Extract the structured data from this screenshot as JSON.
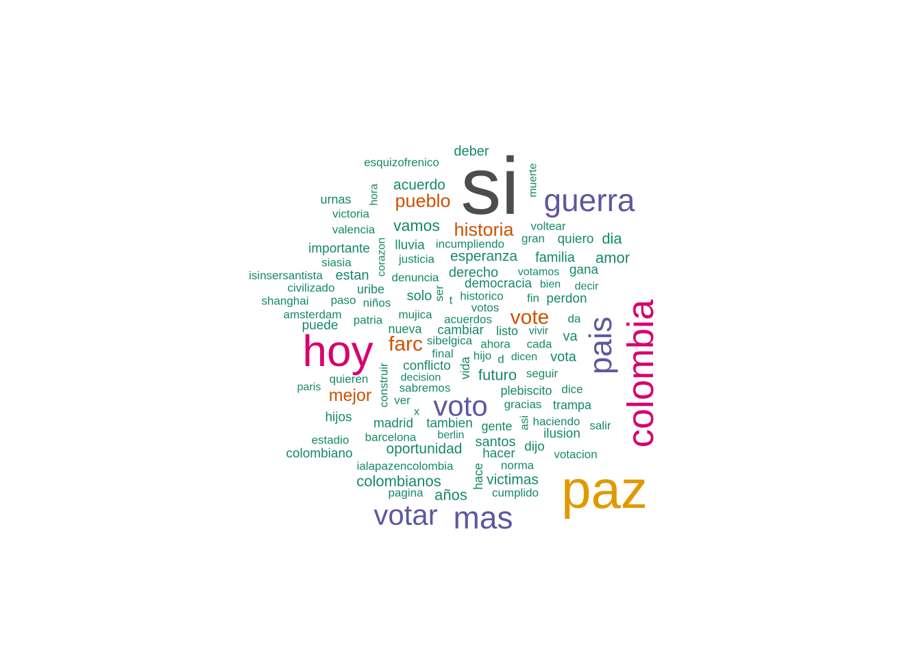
{
  "palette": {
    "dark": "#4d4d4d",
    "purple": "#5e57a0",
    "magenta": "#d6006f",
    "gold": "#e09a00",
    "orange": "#cc5200",
    "green": "#15886a"
  },
  "words": [
    {
      "text": "si",
      "color": "dark"
    },
    {
      "text": "paz",
      "color": "gold"
    },
    {
      "text": "colombia",
      "color": "magenta"
    },
    {
      "text": "hoy",
      "color": "magenta"
    },
    {
      "text": "guerra",
      "color": "purple"
    },
    {
      "text": "pais",
      "color": "purple"
    },
    {
      "text": "voto",
      "color": "purple"
    },
    {
      "text": "mas",
      "color": "purple"
    },
    {
      "text": "votar",
      "color": "purple"
    },
    {
      "text": "vote",
      "color": "orange"
    },
    {
      "text": "farc",
      "color": "orange"
    },
    {
      "text": "historia",
      "color": "orange"
    },
    {
      "text": "pueblo",
      "color": "orange"
    },
    {
      "text": "mejor",
      "color": "orange"
    },
    {
      "text": "deber",
      "color": "green"
    },
    {
      "text": "esquizofrenico",
      "color": "green"
    },
    {
      "text": "muerte",
      "color": "green"
    },
    {
      "text": "acuerdo",
      "color": "green"
    },
    {
      "text": "hora",
      "color": "green"
    },
    {
      "text": "urnas",
      "color": "green"
    },
    {
      "text": "victoria",
      "color": "green"
    },
    {
      "text": "valencia",
      "color": "green"
    },
    {
      "text": "vamos",
      "color": "green"
    },
    {
      "text": "voltear",
      "color": "green"
    },
    {
      "text": "gran",
      "color": "green"
    },
    {
      "text": "quiero",
      "color": "green"
    },
    {
      "text": "dia",
      "color": "green"
    },
    {
      "text": "corazon",
      "color": "green"
    },
    {
      "text": "importante",
      "color": "green"
    },
    {
      "text": "lluvia",
      "color": "green"
    },
    {
      "text": "incumpliendo",
      "color": "green"
    },
    {
      "text": "siasia",
      "color": "green"
    },
    {
      "text": "justicia",
      "color": "green"
    },
    {
      "text": "esperanza",
      "color": "green"
    },
    {
      "text": "familia",
      "color": "green"
    },
    {
      "text": "amor",
      "color": "green"
    },
    {
      "text": "isinsersantista",
      "color": "green"
    },
    {
      "text": "estan",
      "color": "green"
    },
    {
      "text": "denuncia",
      "color": "green"
    },
    {
      "text": "derecho",
      "color": "green"
    },
    {
      "text": "votamos",
      "color": "green"
    },
    {
      "text": "gana",
      "color": "green"
    },
    {
      "text": "civilizado",
      "color": "green"
    },
    {
      "text": "uribe",
      "color": "green"
    },
    {
      "text": "democracia",
      "color": "green"
    },
    {
      "text": "bien",
      "color": "green"
    },
    {
      "text": "decir",
      "color": "green"
    },
    {
      "text": "shanghai",
      "color": "green"
    },
    {
      "text": "paso",
      "color": "green"
    },
    {
      "text": "niños",
      "color": "green"
    },
    {
      "text": "solo",
      "color": "green"
    },
    {
      "text": "ser",
      "color": "green"
    },
    {
      "text": "t",
      "color": "green"
    },
    {
      "text": "historico",
      "color": "green"
    },
    {
      "text": "fin",
      "color": "green"
    },
    {
      "text": "perdon",
      "color": "green"
    },
    {
      "text": "votos",
      "color": "green"
    },
    {
      "text": "amsterdam",
      "color": "green"
    },
    {
      "text": "mujica",
      "color": "green"
    },
    {
      "text": "puede",
      "color": "green"
    },
    {
      "text": "patria",
      "color": "green"
    },
    {
      "text": "acuerdos",
      "color": "green"
    },
    {
      "text": "da",
      "color": "green"
    },
    {
      "text": "nueva",
      "color": "green"
    },
    {
      "text": "cambiar",
      "color": "green"
    },
    {
      "text": "listo",
      "color": "green"
    },
    {
      "text": "vivir",
      "color": "green"
    },
    {
      "text": "va",
      "color": "green"
    },
    {
      "text": "sibelgica",
      "color": "green"
    },
    {
      "text": "ahora",
      "color": "green"
    },
    {
      "text": "cada",
      "color": "green"
    },
    {
      "text": "final",
      "color": "green"
    },
    {
      "text": "hijo",
      "color": "green"
    },
    {
      "text": "d",
      "color": "green"
    },
    {
      "text": "dicen",
      "color": "green"
    },
    {
      "text": "vota",
      "color": "green"
    },
    {
      "text": "vida",
      "color": "green"
    },
    {
      "text": "conflicto",
      "color": "green"
    },
    {
      "text": "construir",
      "color": "green"
    },
    {
      "text": "futuro",
      "color": "green"
    },
    {
      "text": "seguir",
      "color": "green"
    },
    {
      "text": "quieren",
      "color": "green"
    },
    {
      "text": "decision",
      "color": "green"
    },
    {
      "text": "paris",
      "color": "green"
    },
    {
      "text": "sabremos",
      "color": "green"
    },
    {
      "text": "plebiscito",
      "color": "green"
    },
    {
      "text": "dice",
      "color": "green"
    },
    {
      "text": "ver",
      "color": "green"
    },
    {
      "text": "gracias",
      "color": "green"
    },
    {
      "text": "trampa",
      "color": "green"
    },
    {
      "text": "x",
      "color": "green"
    },
    {
      "text": "hijos",
      "color": "green"
    },
    {
      "text": "madrid",
      "color": "green"
    },
    {
      "text": "tambien",
      "color": "green"
    },
    {
      "text": "asi",
      "color": "green"
    },
    {
      "text": "haciendo",
      "color": "green"
    },
    {
      "text": "gente",
      "color": "green"
    },
    {
      "text": "salir",
      "color": "green"
    },
    {
      "text": "berlin",
      "color": "green"
    },
    {
      "text": "ilusion",
      "color": "green"
    },
    {
      "text": "estadio",
      "color": "green"
    },
    {
      "text": "barcelona",
      "color": "green"
    },
    {
      "text": "santos",
      "color": "green"
    },
    {
      "text": "oportunidad",
      "color": "green"
    },
    {
      "text": "dijo",
      "color": "green"
    },
    {
      "text": "colombiano",
      "color": "green"
    },
    {
      "text": "hacer",
      "color": "green"
    },
    {
      "text": "votacion",
      "color": "green"
    },
    {
      "text": "ialapazencolombia",
      "color": "green"
    },
    {
      "text": "norma",
      "color": "green"
    },
    {
      "text": "hace",
      "color": "green"
    },
    {
      "text": "colombianos",
      "color": "green"
    },
    {
      "text": "victimas",
      "color": "green"
    },
    {
      "text": "pagina",
      "color": "green"
    },
    {
      "text": "años",
      "color": "green"
    },
    {
      "text": "cumplido",
      "color": "green"
    }
  ]
}
